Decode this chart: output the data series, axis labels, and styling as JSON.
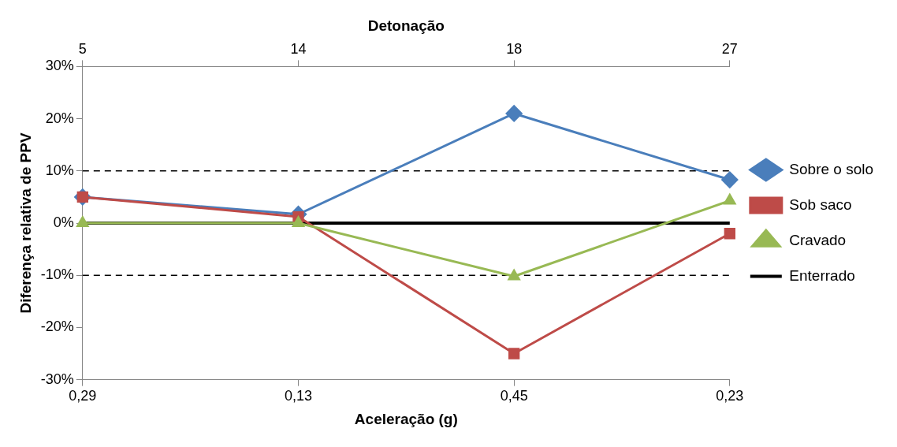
{
  "chart_data": {
    "type": "line",
    "xlabel": "Aceleração (g)",
    "ylabel": "Diferença relativa de PPV",
    "x2label": "Detonação",
    "categories": [
      "0,29",
      "0,13",
      "0,45",
      "0,23"
    ],
    "annotations": [
      "5",
      "14",
      "18",
      "27"
    ],
    "ylim": [
      -30,
      30
    ],
    "yticks": [
      {
        "value": -30,
        "label": "-30%"
      },
      {
        "value": -20,
        "label": "-20%"
      },
      {
        "value": -10,
        "label": "-10%"
      },
      {
        "value": 0,
        "label": "0%"
      },
      {
        "value": 10,
        "label": "10%"
      },
      {
        "value": 20,
        "label": "20%"
      },
      {
        "value": 30,
        "label": "30%"
      }
    ],
    "series": [
      {
        "name": "Sobre o solo",
        "color": "#4a7ebb",
        "marker": "diamond",
        "values": [
          5,
          1.7,
          21,
          8.3
        ]
      },
      {
        "name": "Sob saco",
        "color": "#be4b48",
        "marker": "square",
        "values": [
          5,
          1.2,
          -25,
          -2
        ]
      },
      {
        "name": "Cravado",
        "color": "#98b954",
        "marker": "triangle",
        "values": [
          0,
          0,
          -10.2,
          4.3
        ]
      },
      {
        "name": "Enterrado",
        "color": "#000000",
        "marker": "none",
        "values": [
          0,
          0,
          0,
          0
        ]
      }
    ],
    "ref_lines": [
      {
        "axis": "y",
        "value": 10,
        "line_style": "dashed",
        "color": "#000000"
      },
      {
        "axis": "y",
        "value": -10,
        "line_style": "dashed",
        "color": "#000000"
      }
    ],
    "legend": "right",
    "grid": false
  }
}
